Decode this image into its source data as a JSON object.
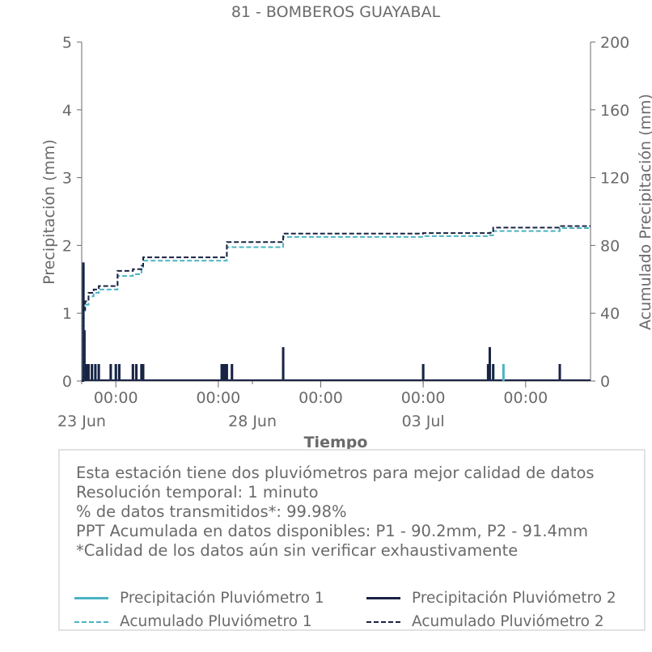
{
  "chart_data": {
    "type": "line",
    "title": "81 - BOMBEROS GUAYABAL",
    "xlabel": "Tiempo",
    "ylabel_left": "Precipitación (mm)",
    "ylabel_right": "Acumulado Precipitación (mm)",
    "ylim_left": [
      0,
      5
    ],
    "ylim_right": [
      0,
      200
    ],
    "y_ticks_left": [
      "0",
      "1",
      "2",
      "3",
      "4",
      "5"
    ],
    "y_ticks_right": [
      "0",
      "40",
      "80",
      "120",
      "160",
      "200"
    ],
    "x_tick_labels_time": [
      "00:00",
      "00:00",
      "00:00",
      "00:00",
      "00:00"
    ],
    "x_tick_labels_date": [
      "23 Jun",
      "28 Jun",
      "03 Jul"
    ],
    "x_unit": "days since 23 Jun 00:00",
    "xlim": [
      0,
      14.9
    ],
    "x_time_ticks": [
      1,
      4,
      7,
      10,
      13
    ],
    "x_date_ticks": [
      0,
      5,
      10
    ],
    "grid": false,
    "colors": {
      "p1": "#4bb3c4",
      "p2": "#1a2344",
      "axis": "#6a6a6a"
    },
    "series": [
      {
        "name": "Precipitación Pluviómetro 1",
        "axis": "left",
        "style": "bars",
        "color": "#4bb3c4",
        "x": [
          0.05,
          0.08,
          0.1,
          0.15,
          0.2,
          0.3,
          0.4,
          0.5,
          0.85,
          1.0,
          1.1,
          1.5,
          1.6,
          1.75,
          4.1,
          4.15,
          4.2,
          4.25,
          4.4,
          5.9,
          10.0,
          11.95,
          12.05,
          12.35,
          14.0
        ],
        "values": [
          1.7,
          0.7,
          0.25,
          0.25,
          0.25,
          0.25,
          0.25,
          0.25,
          0.25,
          0.25,
          0.25,
          0.25,
          0.25,
          0.25,
          0.25,
          0.25,
          0.25,
          0.25,
          0.25,
          0.25,
          0.25,
          0.25,
          0.25,
          0.25,
          0.25
        ]
      },
      {
        "name": "Precipitación Pluviómetro 2",
        "axis": "left",
        "style": "bars",
        "color": "#1a2344",
        "x": [
          0.05,
          0.08,
          0.1,
          0.15,
          0.2,
          0.3,
          0.4,
          0.5,
          0.85,
          1.0,
          1.1,
          1.5,
          1.6,
          1.75,
          1.8,
          4.1,
          4.15,
          4.2,
          4.25,
          4.4,
          5.9,
          10.0,
          11.9,
          11.95,
          12.05,
          14.0
        ],
        "values": [
          1.75,
          0.75,
          0.25,
          0.25,
          0.25,
          0.25,
          0.25,
          0.25,
          0.25,
          0.25,
          0.25,
          0.25,
          0.25,
          0.25,
          0.25,
          0.25,
          0.25,
          0.25,
          0.25,
          0.25,
          0.5,
          0.25,
          0.25,
          0.5,
          0.25,
          0.25
        ]
      },
      {
        "name": "Acumulado Pluviómetro 1",
        "axis": "right",
        "style": "dashed-step",
        "color": "#4bb3c4",
        "x": [
          0.0,
          0.05,
          0.1,
          0.2,
          0.35,
          0.5,
          1.0,
          1.05,
          1.5,
          1.75,
          1.8,
          4.1,
          4.25,
          5.9,
          10.0,
          11.95,
          12.05,
          14.0,
          14.9
        ],
        "values": [
          0,
          40,
          45,
          50,
          52,
          54,
          54,
          62,
          63,
          66,
          71,
          71,
          79,
          85,
          85.5,
          86,
          88.5,
          90.2,
          90.2
        ]
      },
      {
        "name": "Acumulado Pluviómetro 2",
        "axis": "right",
        "style": "dashed-step",
        "color": "#1a2344",
        "x": [
          0.0,
          0.05,
          0.1,
          0.2,
          0.35,
          0.5,
          1.0,
          1.05,
          1.5,
          1.75,
          1.8,
          4.1,
          4.25,
          5.9,
          10.0,
          11.95,
          12.05,
          14.0,
          14.9
        ],
        "values": [
          0,
          42,
          47,
          52,
          54,
          56,
          56,
          65,
          66,
          68,
          73,
          73,
          82,
          87,
          87.3,
          87.5,
          90.5,
          91.4,
          91.4
        ]
      }
    ]
  },
  "info": {
    "lines": [
      "Esta estación tiene dos pluviómetros para mejor calidad de datos",
      "Resolución temporal: 1 minuto",
      "% de datos transmitidos*: 99.98%",
      "PPT Acumulada en datos disponibles: P1 - 90.2mm, P2 - 91.4mm",
      "*Calidad de los datos aún sin verificar exhaustivamente"
    ]
  },
  "legend": {
    "items": [
      {
        "label": "Precipitación Pluviómetro 1",
        "style": "solid",
        "color": "#4bb3c4"
      },
      {
        "label": "Precipitación Pluviómetro 2",
        "style": "solid",
        "color": "#1a2344"
      },
      {
        "label": "Acumulado Pluviómetro 1",
        "style": "dashed",
        "color": "#4bb3c4"
      },
      {
        "label": "Acumulado Pluviómetro 2",
        "style": "dashed",
        "color": "#1a2344"
      }
    ]
  }
}
